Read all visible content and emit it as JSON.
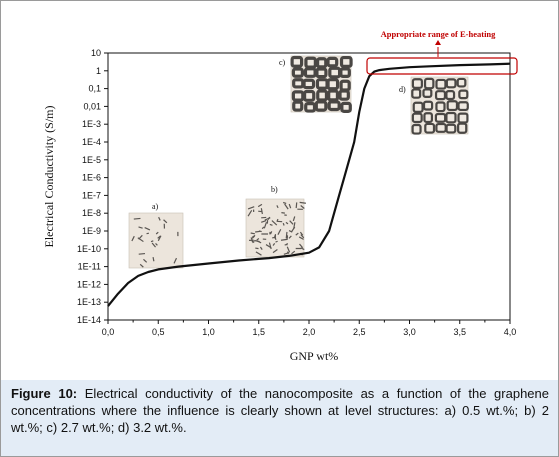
{
  "chart_data": {
    "type": "line",
    "xlabel": "GNP wt%",
    "ylabel": "Electrical Conductivity (S/m)",
    "xlim": [
      0.0,
      4.0
    ],
    "ylim_log10": [
      -14,
      1
    ],
    "y_scale": "log",
    "x_ticks": [
      "0,0",
      "0,5",
      "1,0",
      "1,5",
      "2,0",
      "2,5",
      "3,0",
      "3,5",
      "4,0"
    ],
    "y_ticks": [
      "10",
      "1",
      "0,1",
      "0,01",
      "1E-3",
      "1E-4",
      "1E-5",
      "1E-6",
      "1E-7",
      "1E-8",
      "1E-9",
      "1E-10",
      "1E-11",
      "1E-12",
      "1E-13",
      "1E-14"
    ],
    "grid": false,
    "series": [
      {
        "x": [
          0.0,
          0.1,
          0.2,
          0.3,
          0.4,
          0.5,
          0.7,
          1.0,
          1.3,
          1.6,
          1.8,
          2.0,
          2.1,
          2.2,
          2.25,
          2.3,
          2.35,
          2.4,
          2.45,
          2.5,
          2.55,
          2.6,
          2.65,
          2.7,
          2.8,
          3.0,
          3.2,
          3.5,
          3.8,
          4.0
        ],
        "y": [
          6e-14,
          3e-13,
          1.2e-12,
          3e-12,
          5e-12,
          7e-12,
          1e-11,
          1.5e-11,
          2.2e-11,
          3e-11,
          4e-11,
          6e-11,
          1.2e-10,
          1e-09,
          1e-08,
          1e-07,
          1e-06,
          1e-05,
          0.0001,
          0.005,
          0.1,
          0.5,
          0.9,
          1.1,
          1.3,
          1.6,
          1.8,
          2.1,
          2.3,
          2.5
        ]
      }
    ],
    "annotations": {
      "range_label": "Appropriate range of E-heating",
      "insets": [
        "a)",
        "b)",
        "c)",
        "d)"
      ]
    }
  },
  "caption": {
    "label": "Figure 10:",
    "text": " Electrical conductivity of the nanocomposite as a function of the graphene concentrations where the influence is clearly shown at level structures: a) 0.5 wt.%; b) 2 wt.%; c) 2.7 wt.%; d) 3.2 wt.%."
  },
  "colors": {
    "curve": "#111111",
    "annotation": "#c00000",
    "caption_bg": "#e3ecf6"
  }
}
